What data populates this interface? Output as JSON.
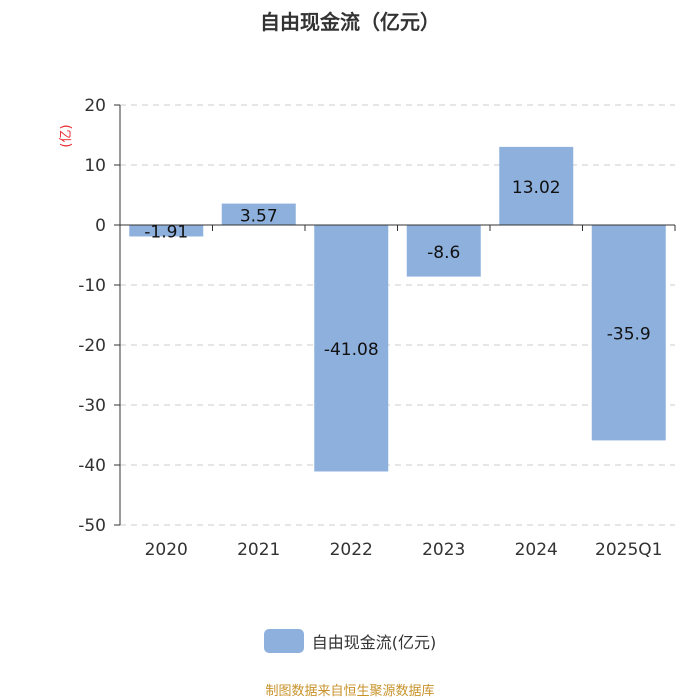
{
  "title": "自由现金流（亿元）",
  "legend_label": "自由现金流(亿元)",
  "source": "制图数据来自恒生聚源数据库",
  "colors": {
    "bar": "#8eb0dd",
    "axis": "#333333",
    "grid": "#cccccc",
    "unit": "#e8262d",
    "source": "#c8922b",
    "text": "#333333"
  },
  "chart_data": {
    "type": "bar",
    "title": "自由现金流（亿元）",
    "ylabel": "(亿)",
    "categories": [
      "2020",
      "2021",
      "2022",
      "2023",
      "2024",
      "2025Q1"
    ],
    "series": [
      {
        "name": "自由现金流(亿元)",
        "values": [
          -1.91,
          3.57,
          -41.08,
          -8.6,
          13.02,
          -35.9
        ]
      }
    ],
    "ylim": [
      -50,
      20
    ],
    "yticks": [
      20,
      10,
      0,
      -10,
      -20,
      -30,
      -40,
      -50
    ],
    "grid": true,
    "legend": "bottom-center"
  }
}
